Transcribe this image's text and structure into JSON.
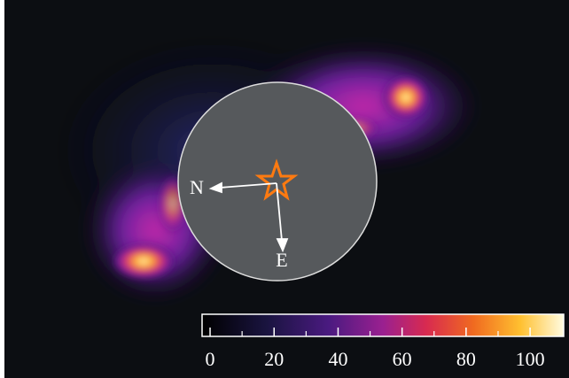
{
  "colorbar": {
    "range": [
      -2.5,
      110.5
    ],
    "ticks": [
      0,
      20,
      40,
      60,
      80,
      100
    ],
    "minor_ticks": [
      10,
      30,
      50,
      70,
      90
    ]
  },
  "compass": {
    "north": "N",
    "east": "E"
  }
}
